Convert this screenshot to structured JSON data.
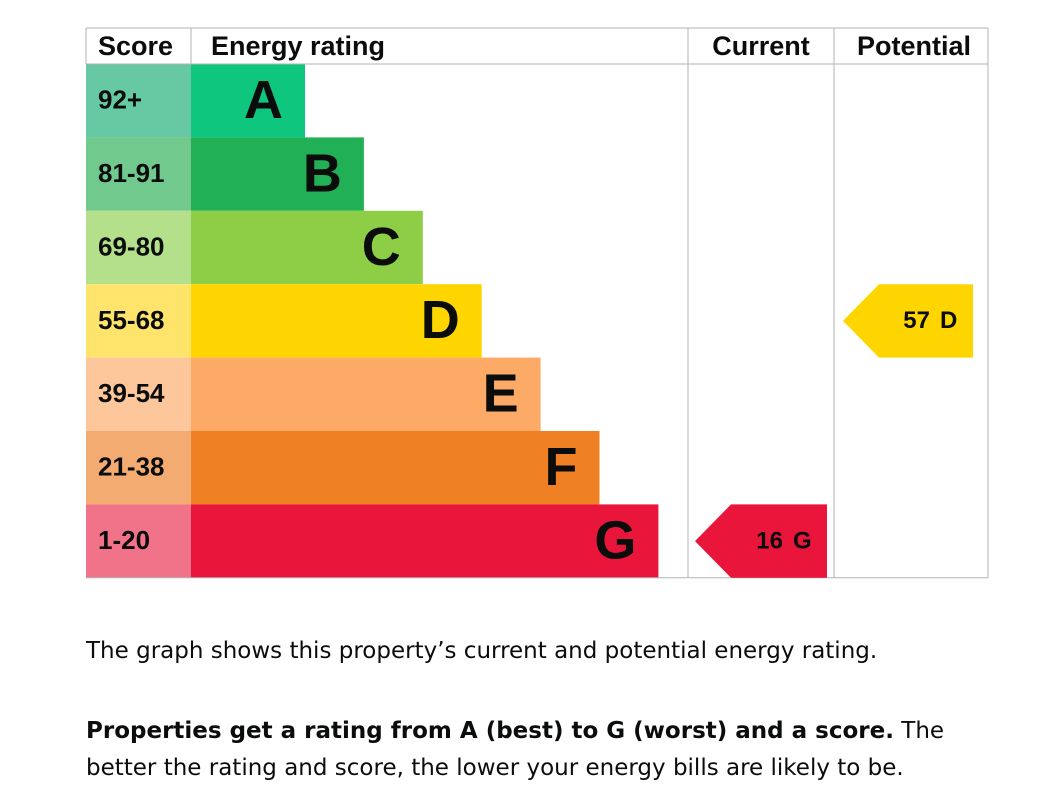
{
  "table": {
    "headers": [
      "Score",
      "Energy rating",
      "Current",
      "Potential"
    ],
    "bands": [
      {
        "score": "92+",
        "letter": "A",
        "color": "#0fc67f",
        "score_color": "#66c9a4"
      },
      {
        "score": "81-91",
        "letter": "B",
        "color": "#22b056",
        "score_color": "#72c98d"
      },
      {
        "score": "69-80",
        "letter": "C",
        "color": "#8dce46",
        "score_color": "#b5e08b"
      },
      {
        "score": "55-68",
        "letter": "D",
        "color": "#ffd500",
        "score_color": "#ffe46b"
      },
      {
        "score": "39-54",
        "letter": "E",
        "color": "#fcaa65",
        "score_color": "#fdc69b"
      },
      {
        "score": "21-38",
        "letter": "F",
        "color": "#ef8023",
        "score_color": "#f3ab72"
      },
      {
        "score": "1-20",
        "letter": "G",
        "color": "#e9153b",
        "score_color": "#f17389"
      }
    ],
    "current": {
      "score": 16,
      "letter": "G"
    },
    "potential": {
      "score": 57,
      "letter": "D"
    }
  },
  "text": {
    "paragraph_1": "The graph shows this property’s current and potential energy rating.",
    "paragraph_2_bold": "Properties get a rating from A (best) to G (worst) and a score.",
    "paragraph_2_rest": " The better the rating and score, the lower your energy bills are likely to be."
  }
}
